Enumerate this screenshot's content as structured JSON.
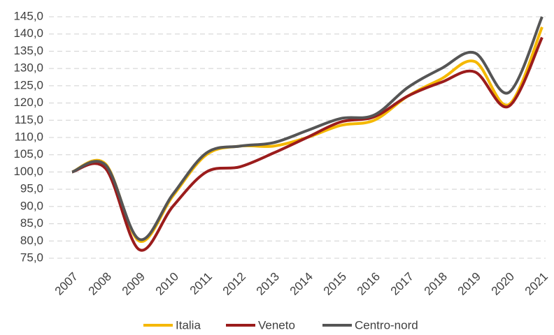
{
  "chart_data": {
    "type": "line",
    "categories": [
      "2007",
      "2008",
      "2009",
      "2010",
      "2011",
      "2012",
      "2013",
      "2014",
      "2015",
      "2016",
      "2017",
      "2018",
      "2019",
      "2020",
      "2021"
    ],
    "series": [
      {
        "name": "Italia",
        "color": "#f5b800",
        "values": [
          100,
          102.3,
          80,
          93,
          105,
          107.5,
          107.5,
          110,
          113.5,
          115,
          122,
          127,
          132,
          119.5,
          142
        ]
      },
      {
        "name": "Veneto",
        "color": "#9b1c1c",
        "values": [
          100,
          101,
          77.5,
          90,
          100,
          101.5,
          105.5,
          110,
          114.5,
          116,
          122,
          126,
          129,
          119,
          139
        ]
      },
      {
        "name": "Centro-nord",
        "color": "#555555",
        "values": [
          100,
          102,
          80.5,
          93.5,
          105.5,
          107.5,
          108.5,
          112,
          115.5,
          116.5,
          124.5,
          130,
          134.5,
          123,
          145
        ]
      }
    ],
    "ylim": [
      75,
      145
    ],
    "yticks": [
      {
        "value": 75,
        "label": "75,0"
      },
      {
        "value": 80,
        "label": "80,0"
      },
      {
        "value": 85,
        "label": "85,0"
      },
      {
        "value": 90,
        "label": "90,0"
      },
      {
        "value": 95,
        "label": "95,0"
      },
      {
        "value": 100,
        "label": "100,0"
      },
      {
        "value": 105,
        "label": "105,0"
      },
      {
        "value": 110,
        "label": "110,0"
      },
      {
        "value": 115,
        "label": "115,0"
      },
      {
        "value": 120,
        "label": "120,0"
      },
      {
        "value": 125,
        "label": "125,0"
      },
      {
        "value": 130,
        "label": "130,0"
      },
      {
        "value": 135,
        "label": "135,0"
      },
      {
        "value": 140,
        "label": "140,0"
      },
      {
        "value": 145,
        "label": "145,0"
      }
    ],
    "grid": true,
    "legend": "bottom"
  }
}
